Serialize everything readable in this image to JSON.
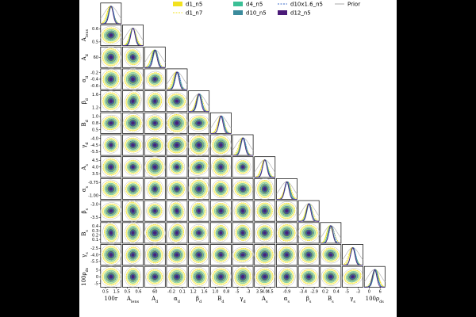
{
  "chart_data": {
    "type": "scatter",
    "subtype": "corner-plot",
    "title": "",
    "parameters": [
      {
        "id": "r",
        "label": "100r",
        "row_label": "",
        "ticks": [
          "0.5",
          "1.5"
        ],
        "range": [
          0,
          2
        ]
      },
      {
        "id": "Alens",
        "label": "A_lens",
        "row_label": "A_lens",
        "ticks": [
          "0.5",
          "0.6"
        ],
        "range": [
          0.4,
          0.7
        ]
      },
      {
        "id": "Ad",
        "label": "A_d",
        "row_label": "A_d",
        "ticks": [
          "60"
        ],
        "range": [
          52,
          68
        ]
      },
      {
        "id": "alphad",
        "label": "α_d",
        "row_label": "α_d",
        "ticks": [
          "-0.2",
          "0.1"
        ],
        "range": [
          -0.6,
          0.2
        ]
      },
      {
        "id": "betad",
        "label": "β_d",
        "row_label": "β_d",
        "ticks": [
          "1.2",
          "1.6"
        ],
        "range": [
          1.0,
          1.8
        ]
      },
      {
        "id": "Bd",
        "label": "B_d",
        "row_label": "B_d",
        "ticks": [
          "1.0",
          "0.8"
        ],
        "range": [
          0.3,
          1.1
        ]
      },
      {
        "id": "gammad",
        "label": "γ_d",
        "row_label": "γ_d",
        "ticks": [
          "-5",
          "-3"
        ],
        "range": [
          -6,
          -2
        ]
      },
      {
        "id": "As",
        "label": "A_s",
        "row_label": "A_s",
        "ticks": [
          "3.5",
          "4.0",
          "4.5"
        ],
        "range": [
          3.2,
          4.8
        ]
      },
      {
        "id": "alphas",
        "label": "α_s",
        "row_label": "α_s",
        "ticks": [
          "-0.9"
        ],
        "range": [
          -1.1,
          -0.6
        ]
      },
      {
        "id": "betas",
        "label": "β_s",
        "row_label": "β_s",
        "ticks": [
          "-3.4",
          "-2.9"
        ],
        "range": [
          -3.6,
          -2.7
        ]
      },
      {
        "id": "Bs",
        "label": "B_s",
        "row_label": "B_s",
        "ticks": [
          "0.2",
          "0.4"
        ],
        "range": [
          0.0,
          0.6
        ]
      },
      {
        "id": "gammas",
        "label": "γ_s",
        "row_label": "γ_s",
        "ticks": [
          "-5",
          "-3"
        ],
        "range": [
          -6,
          -2
        ]
      },
      {
        "id": "rhods",
        "label": "100ρ_ds",
        "row_label": "100ρ_ds",
        "ticks": [
          "0",
          "6"
        ],
        "range": [
          -6,
          7
        ]
      }
    ],
    "row_ticks": [
      [],
      [
        "0.6",
        "0.5"
      ],
      [
        "60"
      ],
      [
        "-0.2",
        "-0.4",
        "-0.6"
      ],
      [
        "1.6",
        "1.2"
      ],
      [
        "1.0",
        "0.8",
        "0.5"
      ],
      [
        "-4.0",
        "-4.5",
        "-5.5"
      ],
      [
        "4.5",
        "4.0",
        "3.5"
      ],
      [
        "-0.75",
        "-1.00"
      ],
      [
        "-3.0",
        "-3.5"
      ],
      [
        "0.4",
        "0.3",
        "0.2",
        "0.1"
      ],
      [
        "-2.5",
        "-4.0",
        "-5.5"
      ],
      [
        "5",
        "0",
        "-5"
      ]
    ],
    "series": [
      {
        "name": "d1_n5",
        "color": "#f2e11f",
        "style": "filled"
      },
      {
        "name": "d1_n7",
        "color": "#f2e11f",
        "style": "dashed"
      },
      {
        "name": "d4_n5",
        "color": "#3bbf96",
        "style": "filled"
      },
      {
        "name": "d10_n5",
        "color": "#3b8b9c",
        "style": "filled"
      },
      {
        "name": "d10x1.6_n5",
        "color": "#3a6bc9",
        "style": "dashed"
      },
      {
        "name": "d12_n5",
        "color": "#4a1a78",
        "style": "filled"
      },
      {
        "name": "Prior",
        "color": "#aaaaaa",
        "style": "line"
      }
    ]
  }
}
